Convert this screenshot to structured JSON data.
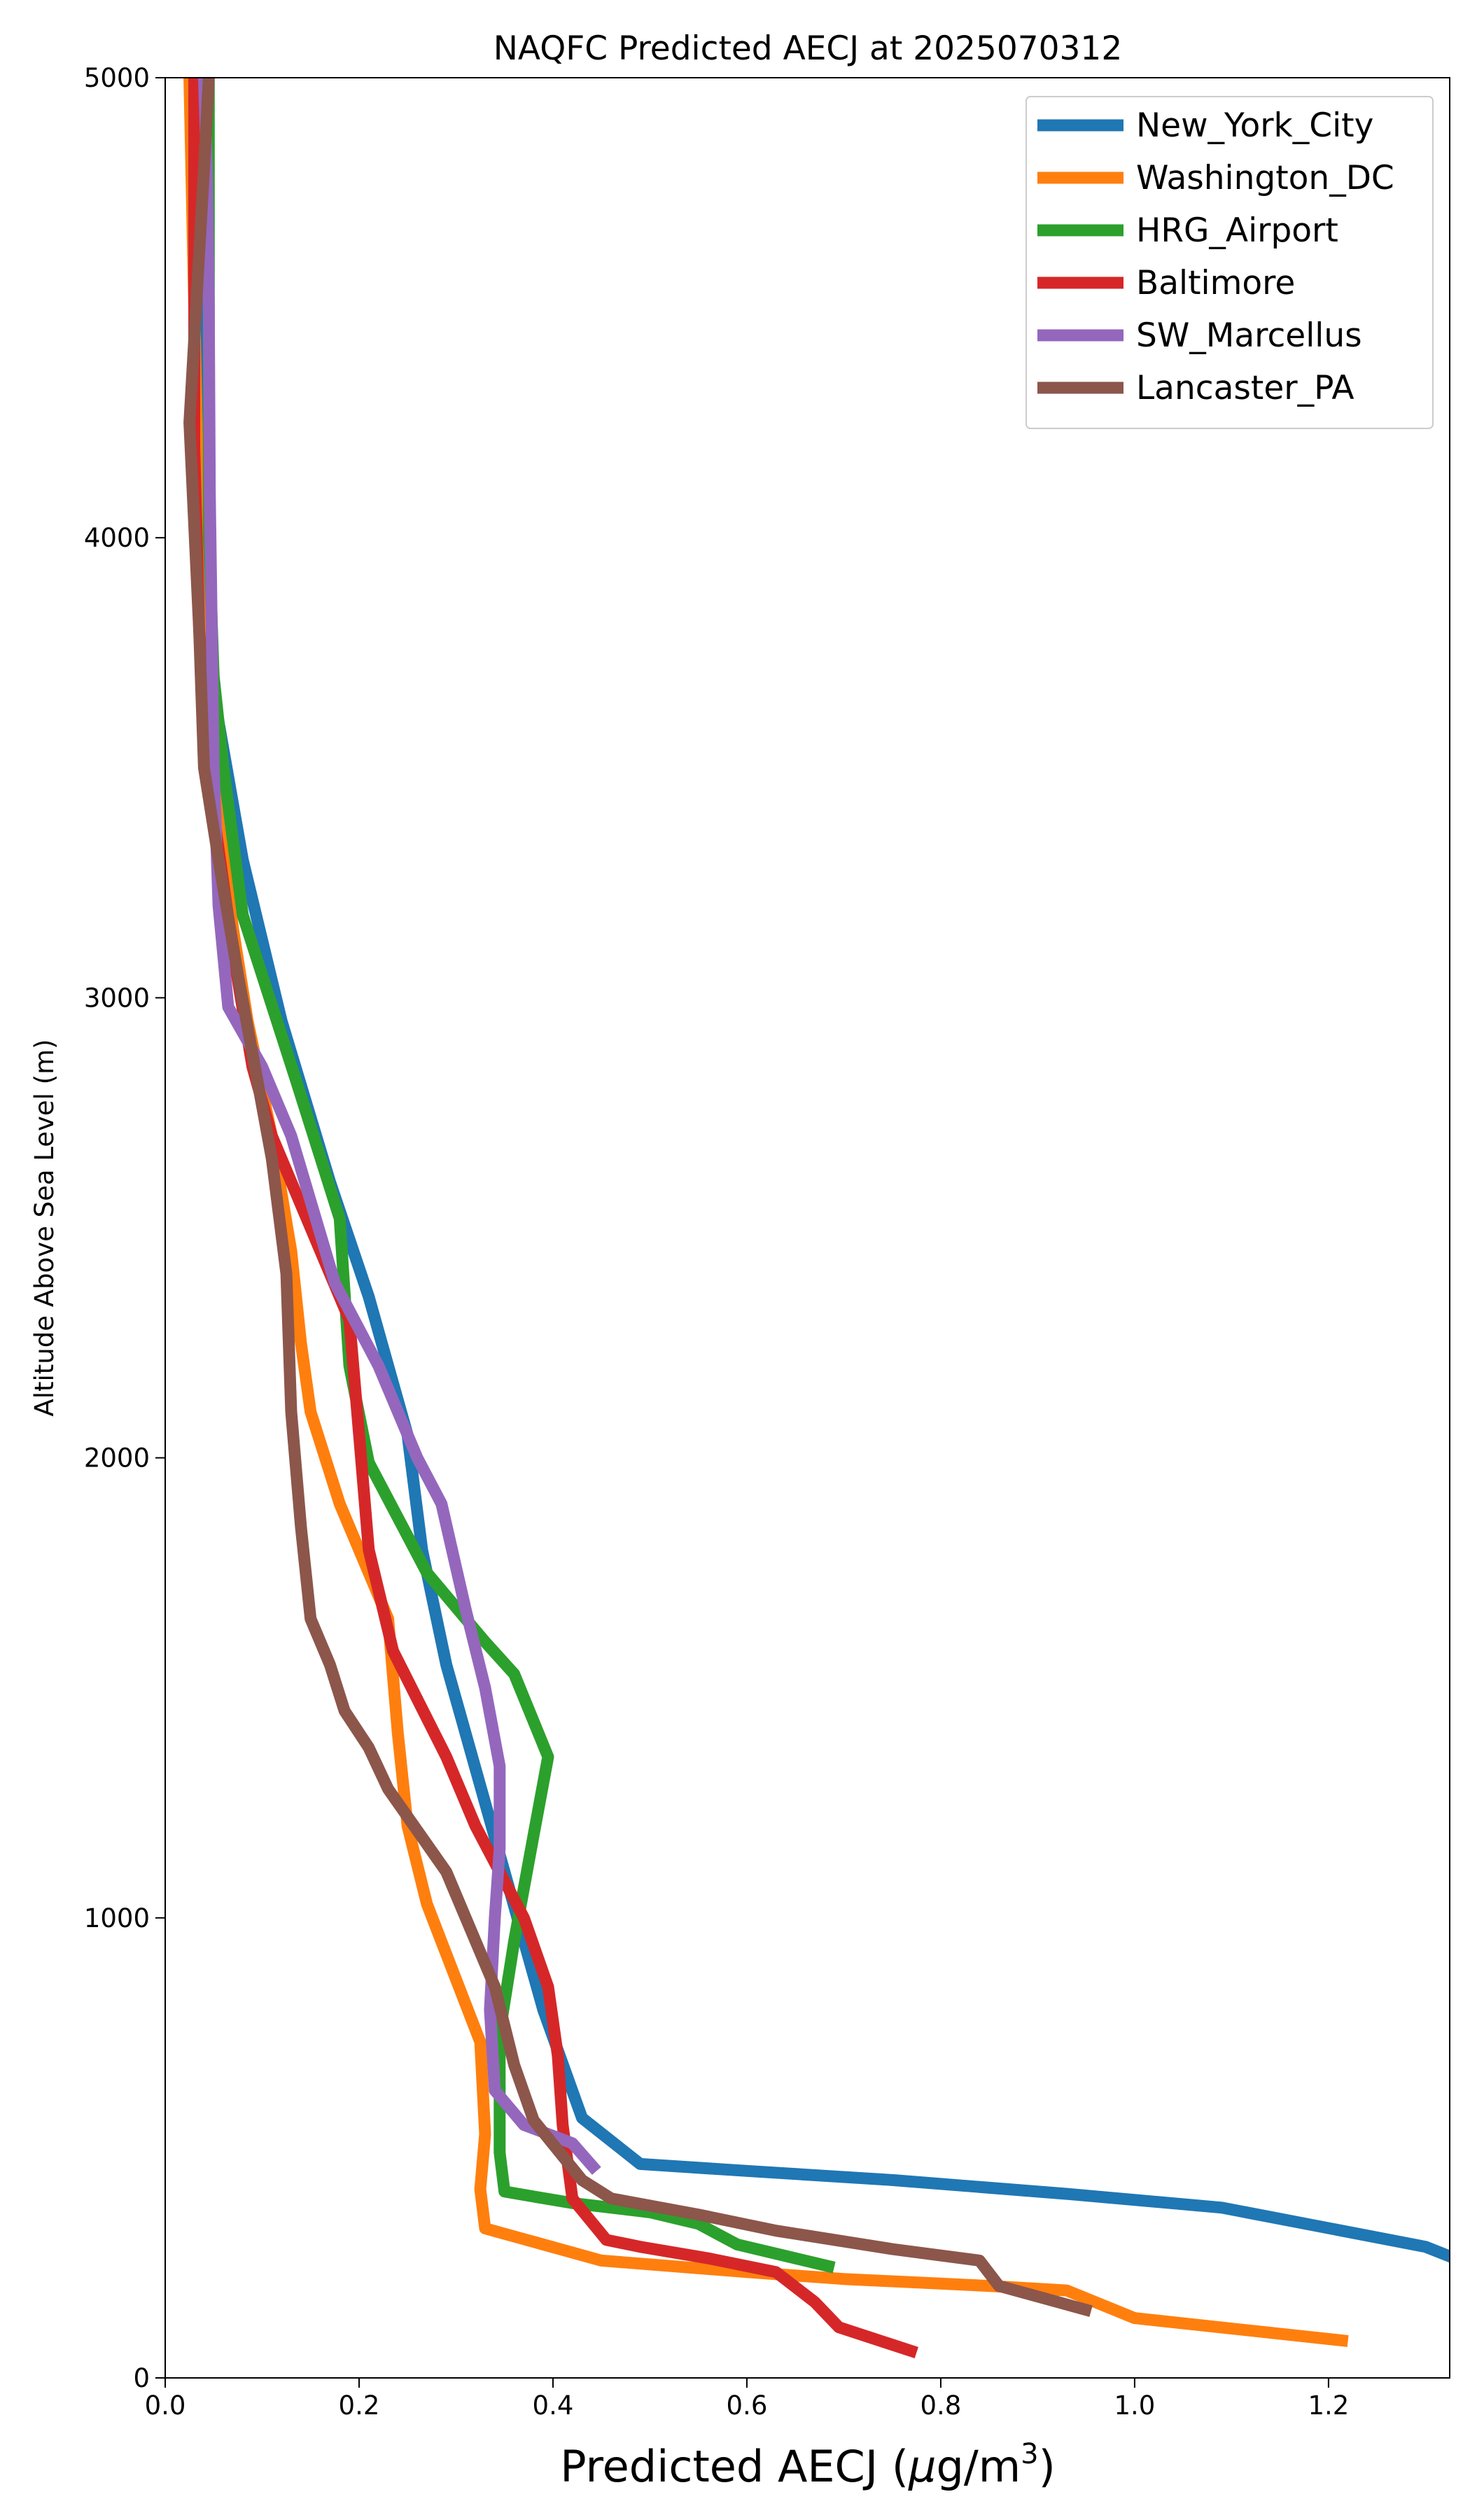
{
  "chart_data": {
    "type": "line",
    "title": "NAQFC Predicted AECJ at 2025070312",
    "xlabel_main": "Predicted AECJ (",
    "xlabel_mu": "μ",
    "xlabel_unit": "g/m",
    "xlabel_sup": "3",
    "xlabel_close": ")",
    "ylabel": "Altitude Above Sea Level (m)",
    "xlim": [
      0,
      1.325
    ],
    "ylim": [
      0,
      5000
    ],
    "xticks": [
      0.0,
      0.2,
      0.4,
      0.6,
      0.8,
      1.0,
      1.2
    ],
    "xtick_labels": [
      "0.0",
      "0.2",
      "0.4",
      "0.6",
      "0.8",
      "1.0",
      "1.2"
    ],
    "yticks": [
      0,
      1000,
      2000,
      3000,
      4000,
      5000
    ],
    "ytick_labels": [
      "0",
      "1000",
      "2000",
      "3000",
      "4000",
      "5000"
    ],
    "grid": false,
    "legend_position": "top-right",
    "series": [
      {
        "name": "New_York_City",
        "color": "#1f77b4",
        "points": [
          [
            1.33,
            260
          ],
          [
            1.3,
            285
          ],
          [
            1.09,
            370
          ],
          [
            0.93,
            400
          ],
          [
            0.75,
            430
          ],
          [
            0.6,
            450
          ],
          [
            0.49,
            465
          ],
          [
            0.43,
            565
          ],
          [
            0.39,
            800
          ],
          [
            0.35,
            1100
          ],
          [
            0.29,
            1550
          ],
          [
            0.265,
            1800
          ],
          [
            0.25,
            2050
          ],
          [
            0.21,
            2350
          ],
          [
            0.17,
            2600
          ],
          [
            0.12,
            2950
          ],
          [
            0.08,
            3300
          ],
          [
            0.055,
            3600
          ],
          [
            0.04,
            3800
          ],
          [
            0.035,
            4300
          ],
          [
            0.03,
            5000
          ]
        ]
      },
      {
        "name": "Washington_DC",
        "color": "#ff7f0e",
        "points": [
          [
            1.22,
            80
          ],
          [
            1.0,
            130
          ],
          [
            0.93,
            190
          ],
          [
            0.85,
            200
          ],
          [
            0.7,
            215
          ],
          [
            0.6,
            230
          ],
          [
            0.45,
            255
          ],
          [
            0.33,
            325
          ],
          [
            0.325,
            410
          ],
          [
            0.33,
            530
          ],
          [
            0.325,
            730
          ],
          [
            0.27,
            1030
          ],
          [
            0.25,
            1200
          ],
          [
            0.24,
            1400
          ],
          [
            0.23,
            1650
          ],
          [
            0.18,
            1900
          ],
          [
            0.15,
            2100
          ],
          [
            0.14,
            2250
          ],
          [
            0.13,
            2450
          ],
          [
            0.11,
            2700
          ],
          [
            0.085,
            2950
          ],
          [
            0.07,
            3150
          ],
          [
            0.055,
            3400
          ],
          [
            0.045,
            3700
          ],
          [
            0.035,
            4000
          ],
          [
            0.03,
            4500
          ],
          [
            0.025,
            5000
          ]
        ]
      },
      {
        "name": "HRG_Airport",
        "color": "#2ca02c",
        "points": [
          [
            0.69,
            240
          ],
          [
            0.64,
            265
          ],
          [
            0.59,
            290
          ],
          [
            0.55,
            335
          ],
          [
            0.5,
            360
          ],
          [
            0.42,
            380
          ],
          [
            0.35,
            405
          ],
          [
            0.345,
            490
          ],
          [
            0.345,
            750
          ],
          [
            0.36,
            950
          ],
          [
            0.38,
            1180
          ],
          [
            0.395,
            1350
          ],
          [
            0.36,
            1530
          ],
          [
            0.33,
            1600
          ],
          [
            0.27,
            1750
          ],
          [
            0.21,
            1990
          ],
          [
            0.19,
            2200
          ],
          [
            0.18,
            2520
          ],
          [
            0.135,
            2820
          ],
          [
            0.08,
            3180
          ],
          [
            0.06,
            3500
          ],
          [
            0.05,
            3700
          ],
          [
            0.045,
            4000
          ],
          [
            0.045,
            4500
          ],
          [
            0.045,
            5000
          ]
        ]
      },
      {
        "name": "Baltimore",
        "color": "#d62728",
        "points": [
          [
            0.775,
            55
          ],
          [
            0.695,
            110
          ],
          [
            0.67,
            165
          ],
          [
            0.63,
            230
          ],
          [
            0.56,
            260
          ],
          [
            0.49,
            285
          ],
          [
            0.455,
            300
          ],
          [
            0.42,
            390
          ],
          [
            0.41,
            550
          ],
          [
            0.405,
            700
          ],
          [
            0.395,
            850
          ],
          [
            0.37,
            1000
          ],
          [
            0.32,
            1200
          ],
          [
            0.29,
            1350
          ],
          [
            0.235,
            1580
          ],
          [
            0.21,
            1800
          ],
          [
            0.2,
            2050
          ],
          [
            0.19,
            2300
          ],
          [
            0.15,
            2500
          ],
          [
            0.11,
            2700
          ],
          [
            0.09,
            2850
          ],
          [
            0.07,
            3100
          ],
          [
            0.05,
            3400
          ],
          [
            0.035,
            3800
          ],
          [
            0.03,
            4200
          ],
          [
            0.03,
            4600
          ],
          [
            0.03,
            5000
          ]
        ]
      },
      {
        "name": "SW_Marcellus",
        "color": "#9467bd",
        "points": [
          [
            0.445,
            450
          ],
          [
            0.42,
            510
          ],
          [
            0.37,
            550
          ],
          [
            0.34,
            625
          ],
          [
            0.335,
            800
          ],
          [
            0.34,
            1000
          ],
          [
            0.345,
            1150
          ],
          [
            0.345,
            1330
          ],
          [
            0.33,
            1500
          ],
          [
            0.31,
            1670
          ],
          [
            0.285,
            1900
          ],
          [
            0.26,
            2000
          ],
          [
            0.22,
            2200
          ],
          [
            0.175,
            2380
          ],
          [
            0.13,
            2700
          ],
          [
            0.1,
            2850
          ],
          [
            0.065,
            2980
          ],
          [
            0.055,
            3200
          ],
          [
            0.05,
            3500
          ],
          [
            0.048,
            3800
          ],
          [
            0.046,
            4100
          ],
          [
            0.045,
            4500
          ],
          [
            0.043,
            4800
          ],
          [
            0.04,
            5000
          ]
        ]
      },
      {
        "name": "Lancaster_PA",
        "color": "#8c564b",
        "points": [
          [
            0.955,
            145
          ],
          [
            0.86,
            200
          ],
          [
            0.84,
            255
          ],
          [
            0.75,
            280
          ],
          [
            0.63,
            320
          ],
          [
            0.55,
            355
          ],
          [
            0.46,
            390
          ],
          [
            0.43,
            430
          ],
          [
            0.38,
            560
          ],
          [
            0.36,
            680
          ],
          [
            0.34,
            850
          ],
          [
            0.31,
            1000
          ],
          [
            0.29,
            1100
          ],
          [
            0.23,
            1280
          ],
          [
            0.21,
            1370
          ],
          [
            0.185,
            1450
          ],
          [
            0.17,
            1550
          ],
          [
            0.15,
            1650
          ],
          [
            0.14,
            1850
          ],
          [
            0.13,
            2100
          ],
          [
            0.125,
            2400
          ],
          [
            0.11,
            2650
          ],
          [
            0.075,
            3050
          ],
          [
            0.055,
            3300
          ],
          [
            0.04,
            3500
          ],
          [
            0.035,
            3800
          ],
          [
            0.025,
            4250
          ],
          [
            0.04,
            4800
          ],
          [
            0.045,
            5000
          ]
        ]
      }
    ]
  }
}
